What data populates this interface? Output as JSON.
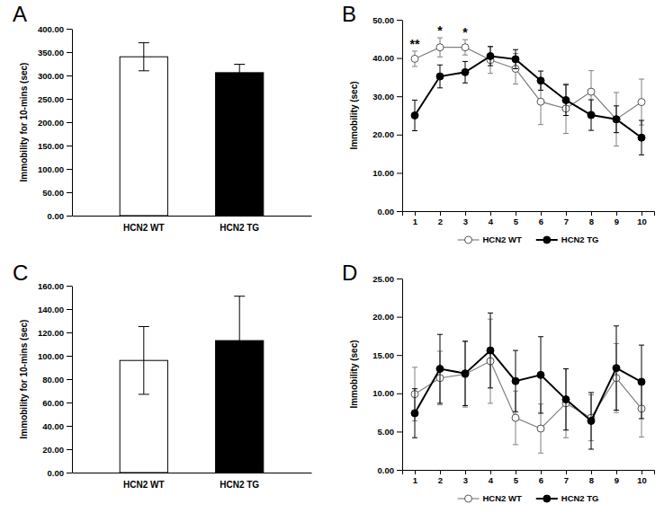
{
  "chart_data": [
    {
      "type": "bar",
      "title": "A",
      "y_label": "Immobility for 10-mins (sec)",
      "categories": [
        "HCN2 WT",
        "HCN2 TG"
      ],
      "values": [
        340,
        306
      ],
      "errors": [
        30,
        18
      ],
      "colors": [
        "#ffffff",
        "#000000"
      ],
      "ylim": [
        0,
        400
      ],
      "yticks": [
        {
          "value": 0,
          "label": "0.00"
        },
        {
          "value": 50,
          "label": "50.00"
        },
        {
          "value": 100,
          "label": "100.00"
        },
        {
          "value": 150,
          "label": "150.00"
        },
        {
          "value": 200,
          "label": "200.00"
        },
        {
          "value": 250,
          "label": "250.00"
        },
        {
          "value": 300,
          "label": "300.00"
        },
        {
          "value": 350,
          "label": "350.00"
        },
        {
          "value": 400,
          "label": "400.00"
        }
      ]
    },
    {
      "type": "line",
      "title": "B",
      "y_label": "Immobility (sec)",
      "categories": [
        "1",
        "2",
        "3",
        "4",
        "5",
        "6",
        "7",
        "8",
        "9",
        "10"
      ],
      "series": [
        {
          "name": "HCN2 WT",
          "color": "#808080",
          "marker": "open-circle",
          "values": [
            39.8,
            42.8,
            42.8,
            39.5,
            37.2,
            28.6,
            26.8,
            31.2,
            24.0,
            28.5
          ],
          "errors": [
            2.0,
            2.5,
            2.0,
            3.5,
            4.0,
            6.0,
            6.5,
            5.5,
            7.0,
            6.0
          ]
        },
        {
          "name": "HCN2 TG",
          "color": "#000000",
          "marker": "circle",
          "values": [
            25.0,
            35.2,
            36.3,
            40.5,
            39.7,
            34.1,
            29.0,
            25.1,
            24.0,
            19.2
          ],
          "errors": [
            4.0,
            3.0,
            2.8,
            2.5,
            2.5,
            2.5,
            4.0,
            4.0,
            3.5,
            4.5
          ]
        }
      ],
      "annotations": [
        {
          "text": "**",
          "category": "1"
        },
        {
          "text": "*",
          "category": "2"
        },
        {
          "text": "*",
          "category": "3"
        }
      ],
      "legend": "bottom",
      "ylim": [
        0,
        50
      ],
      "yticks": [
        {
          "value": 0,
          "label": "0.00"
        },
        {
          "value": 10,
          "label": "10.00"
        },
        {
          "value": 20,
          "label": "20.00"
        },
        {
          "value": 30,
          "label": "30.00"
        },
        {
          "value": 40,
          "label": "40.00"
        },
        {
          "value": 50,
          "label": "50.00"
        }
      ]
    },
    {
      "type": "bar",
      "title": "C",
      "y_label": "Immobility for 10-mins (sec)",
      "categories": [
        "HCN2 WT",
        "HCN2 TG"
      ],
      "values": [
        96,
        113
      ],
      "errors": [
        29,
        38
      ],
      "colors": [
        "#ffffff",
        "#000000"
      ],
      "ylim": [
        0,
        160
      ],
      "yticks": [
        {
          "value": 0,
          "label": "0.00"
        },
        {
          "value": 20,
          "label": "20.00"
        },
        {
          "value": 40,
          "label": "40.00"
        },
        {
          "value": 60,
          "label": "60.00"
        },
        {
          "value": 80,
          "label": "80.00"
        },
        {
          "value": 100,
          "label": "100.00"
        },
        {
          "value": 120,
          "label": "120.00"
        },
        {
          "value": 140,
          "label": "140.00"
        },
        {
          "value": 160,
          "label": "160.00"
        }
      ]
    },
    {
      "type": "line",
      "title": "D",
      "y_label": "Immobility (sec)",
      "categories": [
        "1",
        "2",
        "3",
        "4",
        "5",
        "6",
        "7",
        "8",
        "9",
        "10"
      ],
      "series": [
        {
          "name": "HCN2 WT",
          "color": "#808080",
          "marker": "open-circle",
          "values": [
            9.9,
            12.0,
            12.5,
            14.2,
            6.8,
            5.4,
            8.7,
            6.8,
            12.0,
            8.0
          ],
          "errors": [
            3.5,
            3.5,
            4.3,
            5.5,
            3.5,
            3.2,
            4.5,
            3.0,
            4.5,
            3.7
          ]
        },
        {
          "name": "HCN2 TG",
          "color": "#000000",
          "marker": "circle",
          "values": [
            7.4,
            13.2,
            12.6,
            15.6,
            11.6,
            12.4,
            9.2,
            6.4,
            13.3,
            11.5
          ],
          "errors": [
            3.2,
            4.5,
            4.2,
            4.9,
            4.0,
            5.0,
            4.0,
            3.7,
            5.5,
            4.8
          ]
        }
      ],
      "legend": "bottom",
      "ylim": [
        0,
        25
      ],
      "yticks": [
        {
          "value": 0,
          "label": "0.00"
        },
        {
          "value": 5,
          "label": "5.00"
        },
        {
          "value": 10,
          "label": "10.00"
        },
        {
          "value": 15,
          "label": "15.00"
        },
        {
          "value": 20,
          "label": "20.00"
        },
        {
          "value": 25,
          "label": "25.00"
        }
      ]
    }
  ]
}
